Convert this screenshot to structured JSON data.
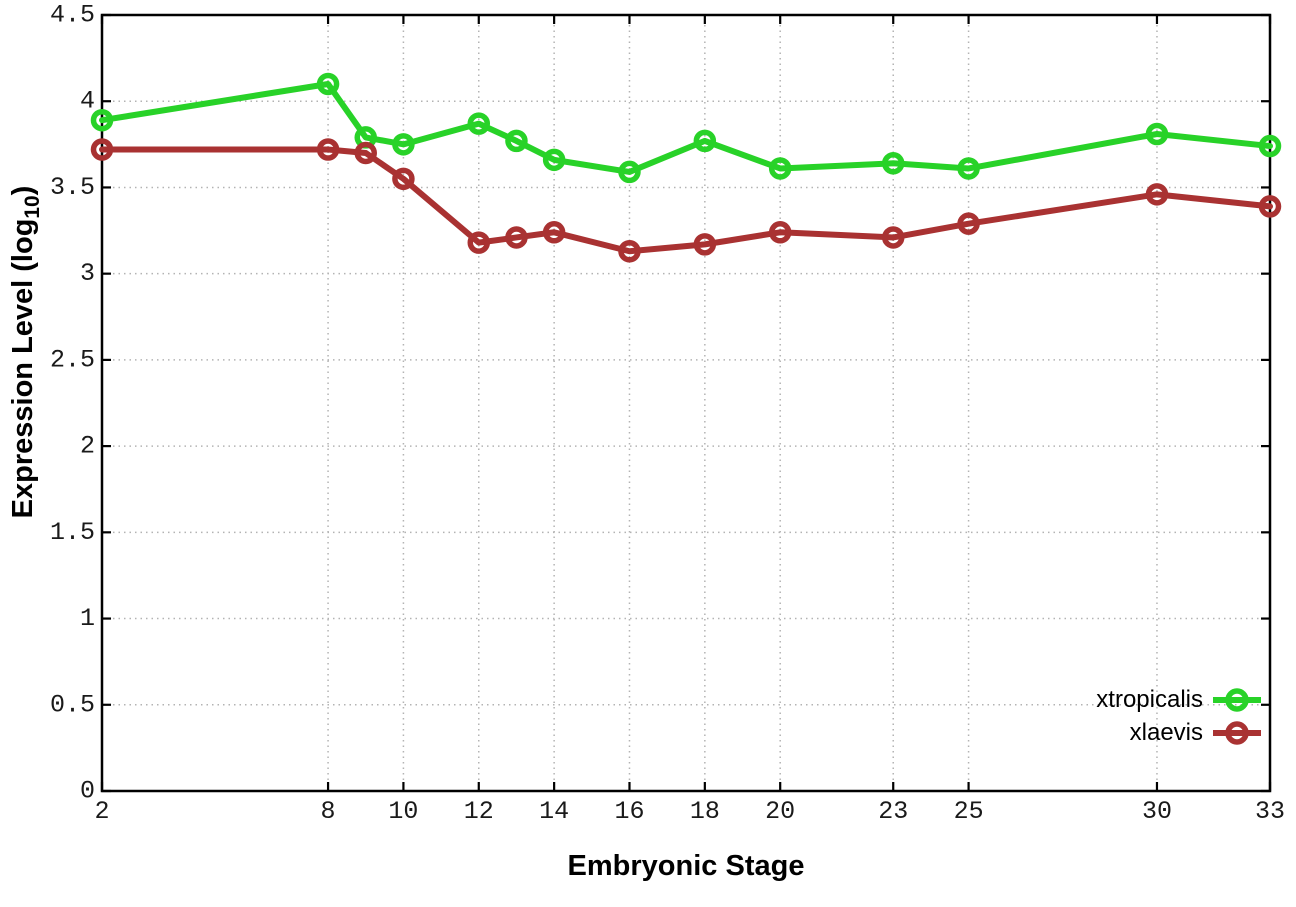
{
  "figure": {
    "background": "#ffffff",
    "x_axis_title": "Embryonic Stage",
    "y_axis_title": {
      "prefix": "Expression Level (log",
      "sub": "10",
      "suffix": ")"
    }
  },
  "legend": {
    "position": "bottom-right",
    "entries": [
      {
        "label": "xtropicalis",
        "color": "#28d228"
      },
      {
        "label": "xlaevis",
        "color": "#a93232"
      }
    ]
  },
  "chart_data": {
    "type": "line",
    "title": "",
    "xlabel": "Embryonic Stage",
    "ylabel": "Expression Level (log10)",
    "x": [
      2,
      8,
      9,
      10,
      12,
      13,
      14,
      16,
      18,
      20,
      23,
      25,
      30,
      33
    ],
    "series": [
      {
        "name": "xtropicalis",
        "color": "#28d228",
        "marker": "open-circle",
        "values": [
          3.89,
          4.1,
          3.79,
          3.75,
          3.87,
          3.77,
          3.66,
          3.59,
          3.77,
          3.61,
          3.64,
          3.61,
          3.81,
          3.74
        ]
      },
      {
        "name": "xlaevis",
        "color": "#a93232",
        "marker": "open-circle",
        "values": [
          3.72,
          3.72,
          3.7,
          3.55,
          3.18,
          3.21,
          3.24,
          3.13,
          3.17,
          3.24,
          3.21,
          3.29,
          3.46,
          3.39
        ]
      }
    ],
    "xlim": [
      2,
      33
    ],
    "ylim": [
      0,
      4.5
    ],
    "xticks": [
      2,
      8,
      10,
      12,
      14,
      16,
      18,
      20,
      23,
      25,
      30,
      33
    ],
    "yticks": [
      0,
      0.5,
      1,
      1.5,
      2,
      2.5,
      3,
      3.5,
      4,
      4.5
    ],
    "grid": true,
    "grid_style": "dotted",
    "grid_color": "#b3b3b3",
    "axis_color": "#000000",
    "legend_position": "bottom-right"
  }
}
